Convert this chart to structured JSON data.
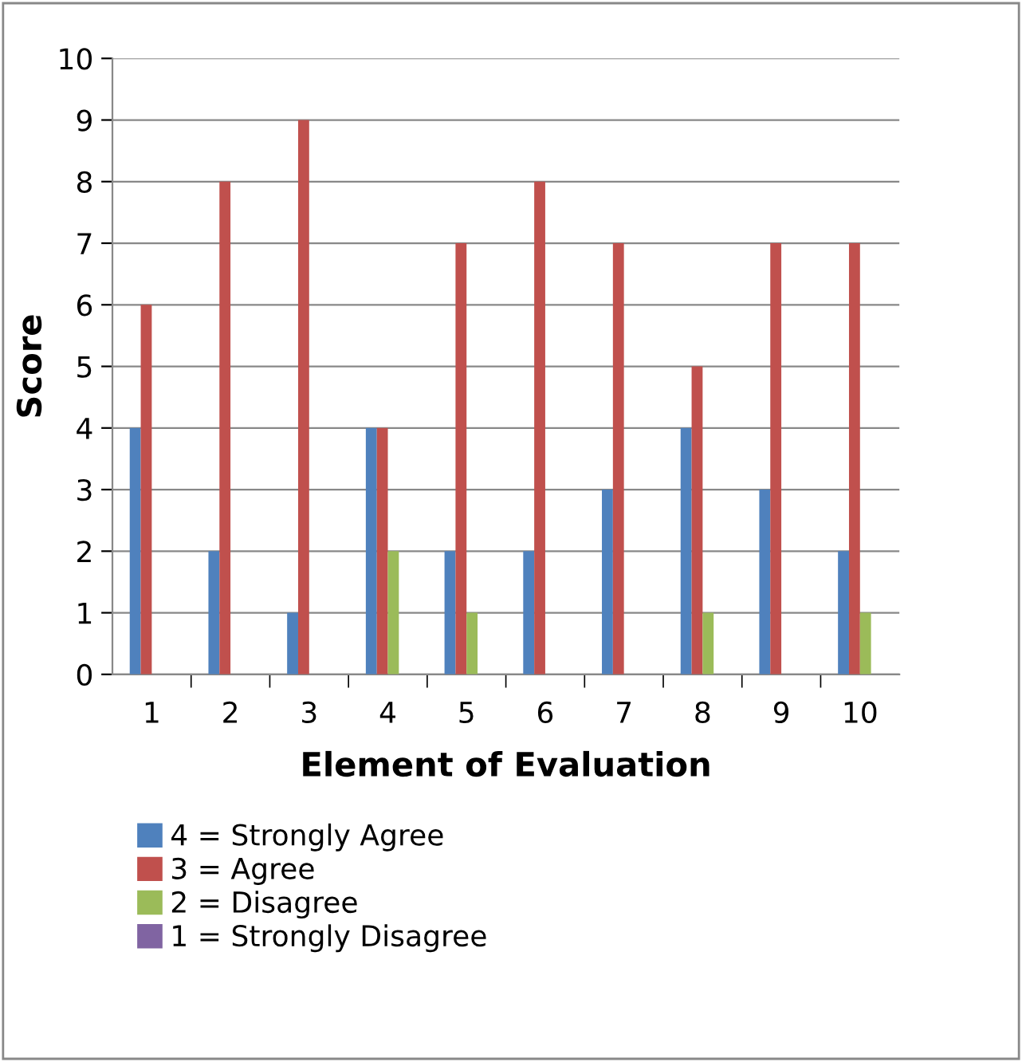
{
  "chart_data": {
    "type": "bar",
    "xlabel": "Element of Evaluation",
    "ylabel": "Score",
    "categories": [
      "1",
      "2",
      "3",
      "4",
      "5",
      "6",
      "7",
      "8",
      "9",
      "10"
    ],
    "series": [
      {
        "name": "4 = Strongly Agree",
        "color": "#4f81bd",
        "values": [
          4,
          2,
          1,
          4,
          2,
          2,
          3,
          4,
          3,
          2
        ]
      },
      {
        "name": "3 = Agree",
        "color": "#c0504d",
        "values": [
          6,
          8,
          9,
          4,
          7,
          8,
          7,
          5,
          7,
          7
        ]
      },
      {
        "name": "2 = Disagree",
        "color": "#9bbb59",
        "values": [
          0,
          0,
          0,
          2,
          1,
          0,
          0,
          1,
          0,
          1
        ]
      },
      {
        "name": "1 = Strongly Disagree",
        "color": "#8064a2",
        "values": [
          0,
          0,
          0,
          0,
          0,
          0,
          0,
          0,
          0,
          0
        ]
      }
    ],
    "ylim": [
      0,
      10
    ],
    "yticks": [
      0,
      1,
      2,
      3,
      4,
      5,
      6,
      7,
      8,
      9,
      10
    ],
    "grid": "y",
    "legend": "bottom"
  }
}
